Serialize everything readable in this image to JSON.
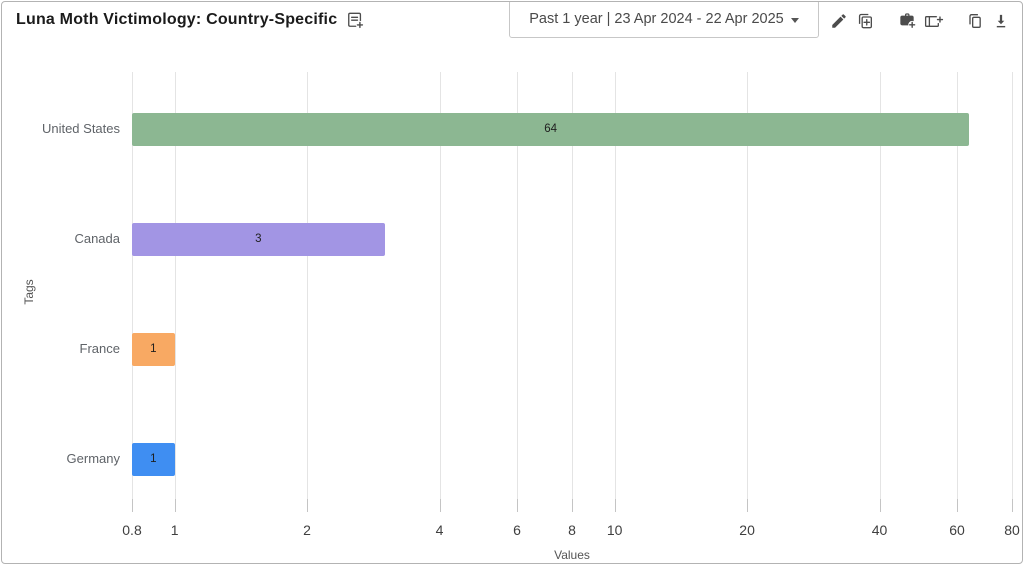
{
  "header": {
    "title": "Luna Moth Victimology: Country-Specific",
    "title_icon": "add-note-icon",
    "date_range_label": "Past 1 year | 23 Apr 2024 - 22 Apr 2025",
    "toolbar_icons": [
      "edit-icon",
      "duplicate-icon",
      "add-to-case-icon",
      "add-to-report-icon",
      "copy-icon",
      "download-icon"
    ]
  },
  "chart_data": {
    "type": "bar",
    "orientation": "horizontal",
    "title": "Luna Moth Victimology: Country-Specific",
    "categories": [
      "United States",
      "Canada",
      "France",
      "Germany"
    ],
    "values": [
      64,
      3,
      1,
      1
    ],
    "bar_labels": [
      "64",
      "3",
      "1",
      "1"
    ],
    "bar_colors": [
      "#8cb792",
      "#a295e4",
      "#f8a963",
      "#3f8ef2"
    ],
    "xlabel": "Values",
    "ylabel": "Tags",
    "x_scale": "log",
    "xlim": [
      0.8,
      80
    ],
    "x_ticks": [
      0.8,
      1,
      2,
      4,
      6,
      8,
      10,
      20,
      40,
      60,
      80
    ],
    "grid": "vertical-only",
    "legend": "none"
  },
  "colors": {
    "grid": "#e4e4e4",
    "tick": "#c4c4c4",
    "axis_text": "#3f3f3f",
    "category_text": "#5f6368",
    "icon": "#4c4c4c",
    "border": "#b3b3b3"
  }
}
